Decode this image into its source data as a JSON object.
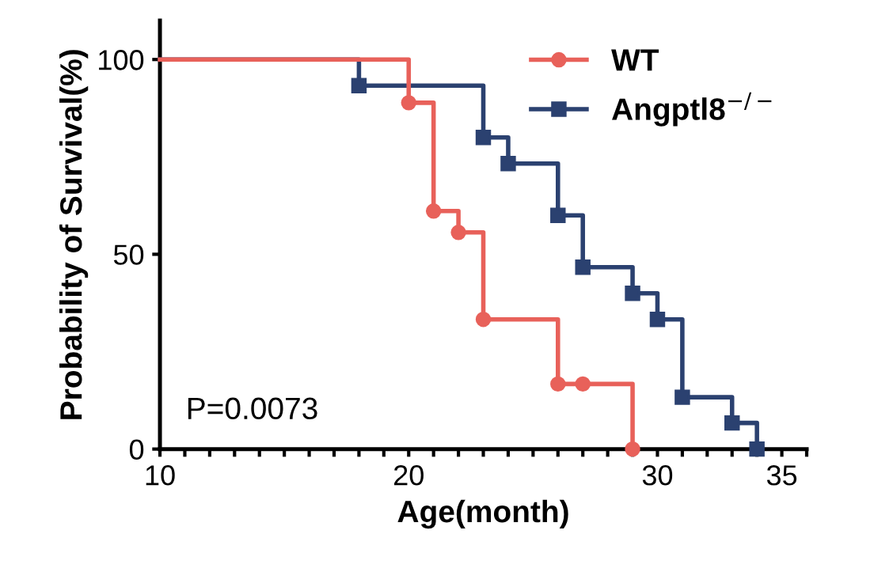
{
  "chart_data": {
    "type": "step",
    "xlabel": "Age(month)",
    "ylabel": "Probability of Survival(%)",
    "xlim": [
      10,
      36
    ],
    "ylim": [
      0,
      110
    ],
    "xticks": [
      10,
      {
        "value": 11,
        "label": null
      },
      {
        "value": 12,
        "label": null
      },
      {
        "value": 13,
        "label": null
      },
      {
        "value": 14,
        "label": null
      },
      {
        "value": 15,
        "label": null
      },
      {
        "value": 16,
        "label": null
      },
      {
        "value": 17,
        "label": null
      },
      {
        "value": 18,
        "label": null
      },
      {
        "value": 19,
        "label": null
      },
      20,
      {
        "value": 21,
        "label": null
      },
      {
        "value": 22,
        "label": null
      },
      {
        "value": 23,
        "label": null
      },
      {
        "value": 24,
        "label": null
      },
      {
        "value": 25,
        "label": null
      },
      {
        "value": 26,
        "label": null
      },
      {
        "value": 27,
        "label": null
      },
      {
        "value": 28,
        "label": null
      },
      {
        "value": 29,
        "label": null
      },
      30,
      {
        "value": 31,
        "label": null
      },
      {
        "value": 32,
        "label": null
      },
      {
        "value": 33,
        "label": null
      },
      {
        "value": 34,
        "label": null
      },
      35,
      {
        "value": 36,
        "label": null
      }
    ],
    "yticks": [
      0,
      50,
      100
    ],
    "legend": "top right",
    "grid": false,
    "annotations": [
      "P=0.0073"
    ],
    "series": [
      {
        "name": "WT",
        "color": "#e8615a",
        "marker": "circle",
        "x": [
          10,
          20,
          21,
          22,
          23,
          26,
          27,
          29
        ],
        "values": [
          100,
          88.9,
          61.1,
          55.6,
          33.3,
          16.7,
          16.7,
          0
        ]
      },
      {
        "name": "Angptl8$^{−/−}$",
        "color": "#2b4170",
        "marker": "square",
        "x": [
          10,
          18,
          23,
          24,
          26,
          27,
          29,
          30,
          31,
          33,
          34
        ],
        "values": [
          100,
          93.3,
          80,
          73.3,
          60,
          46.7,
          40,
          33.3,
          13.3,
          6.7,
          0
        ]
      }
    ]
  }
}
